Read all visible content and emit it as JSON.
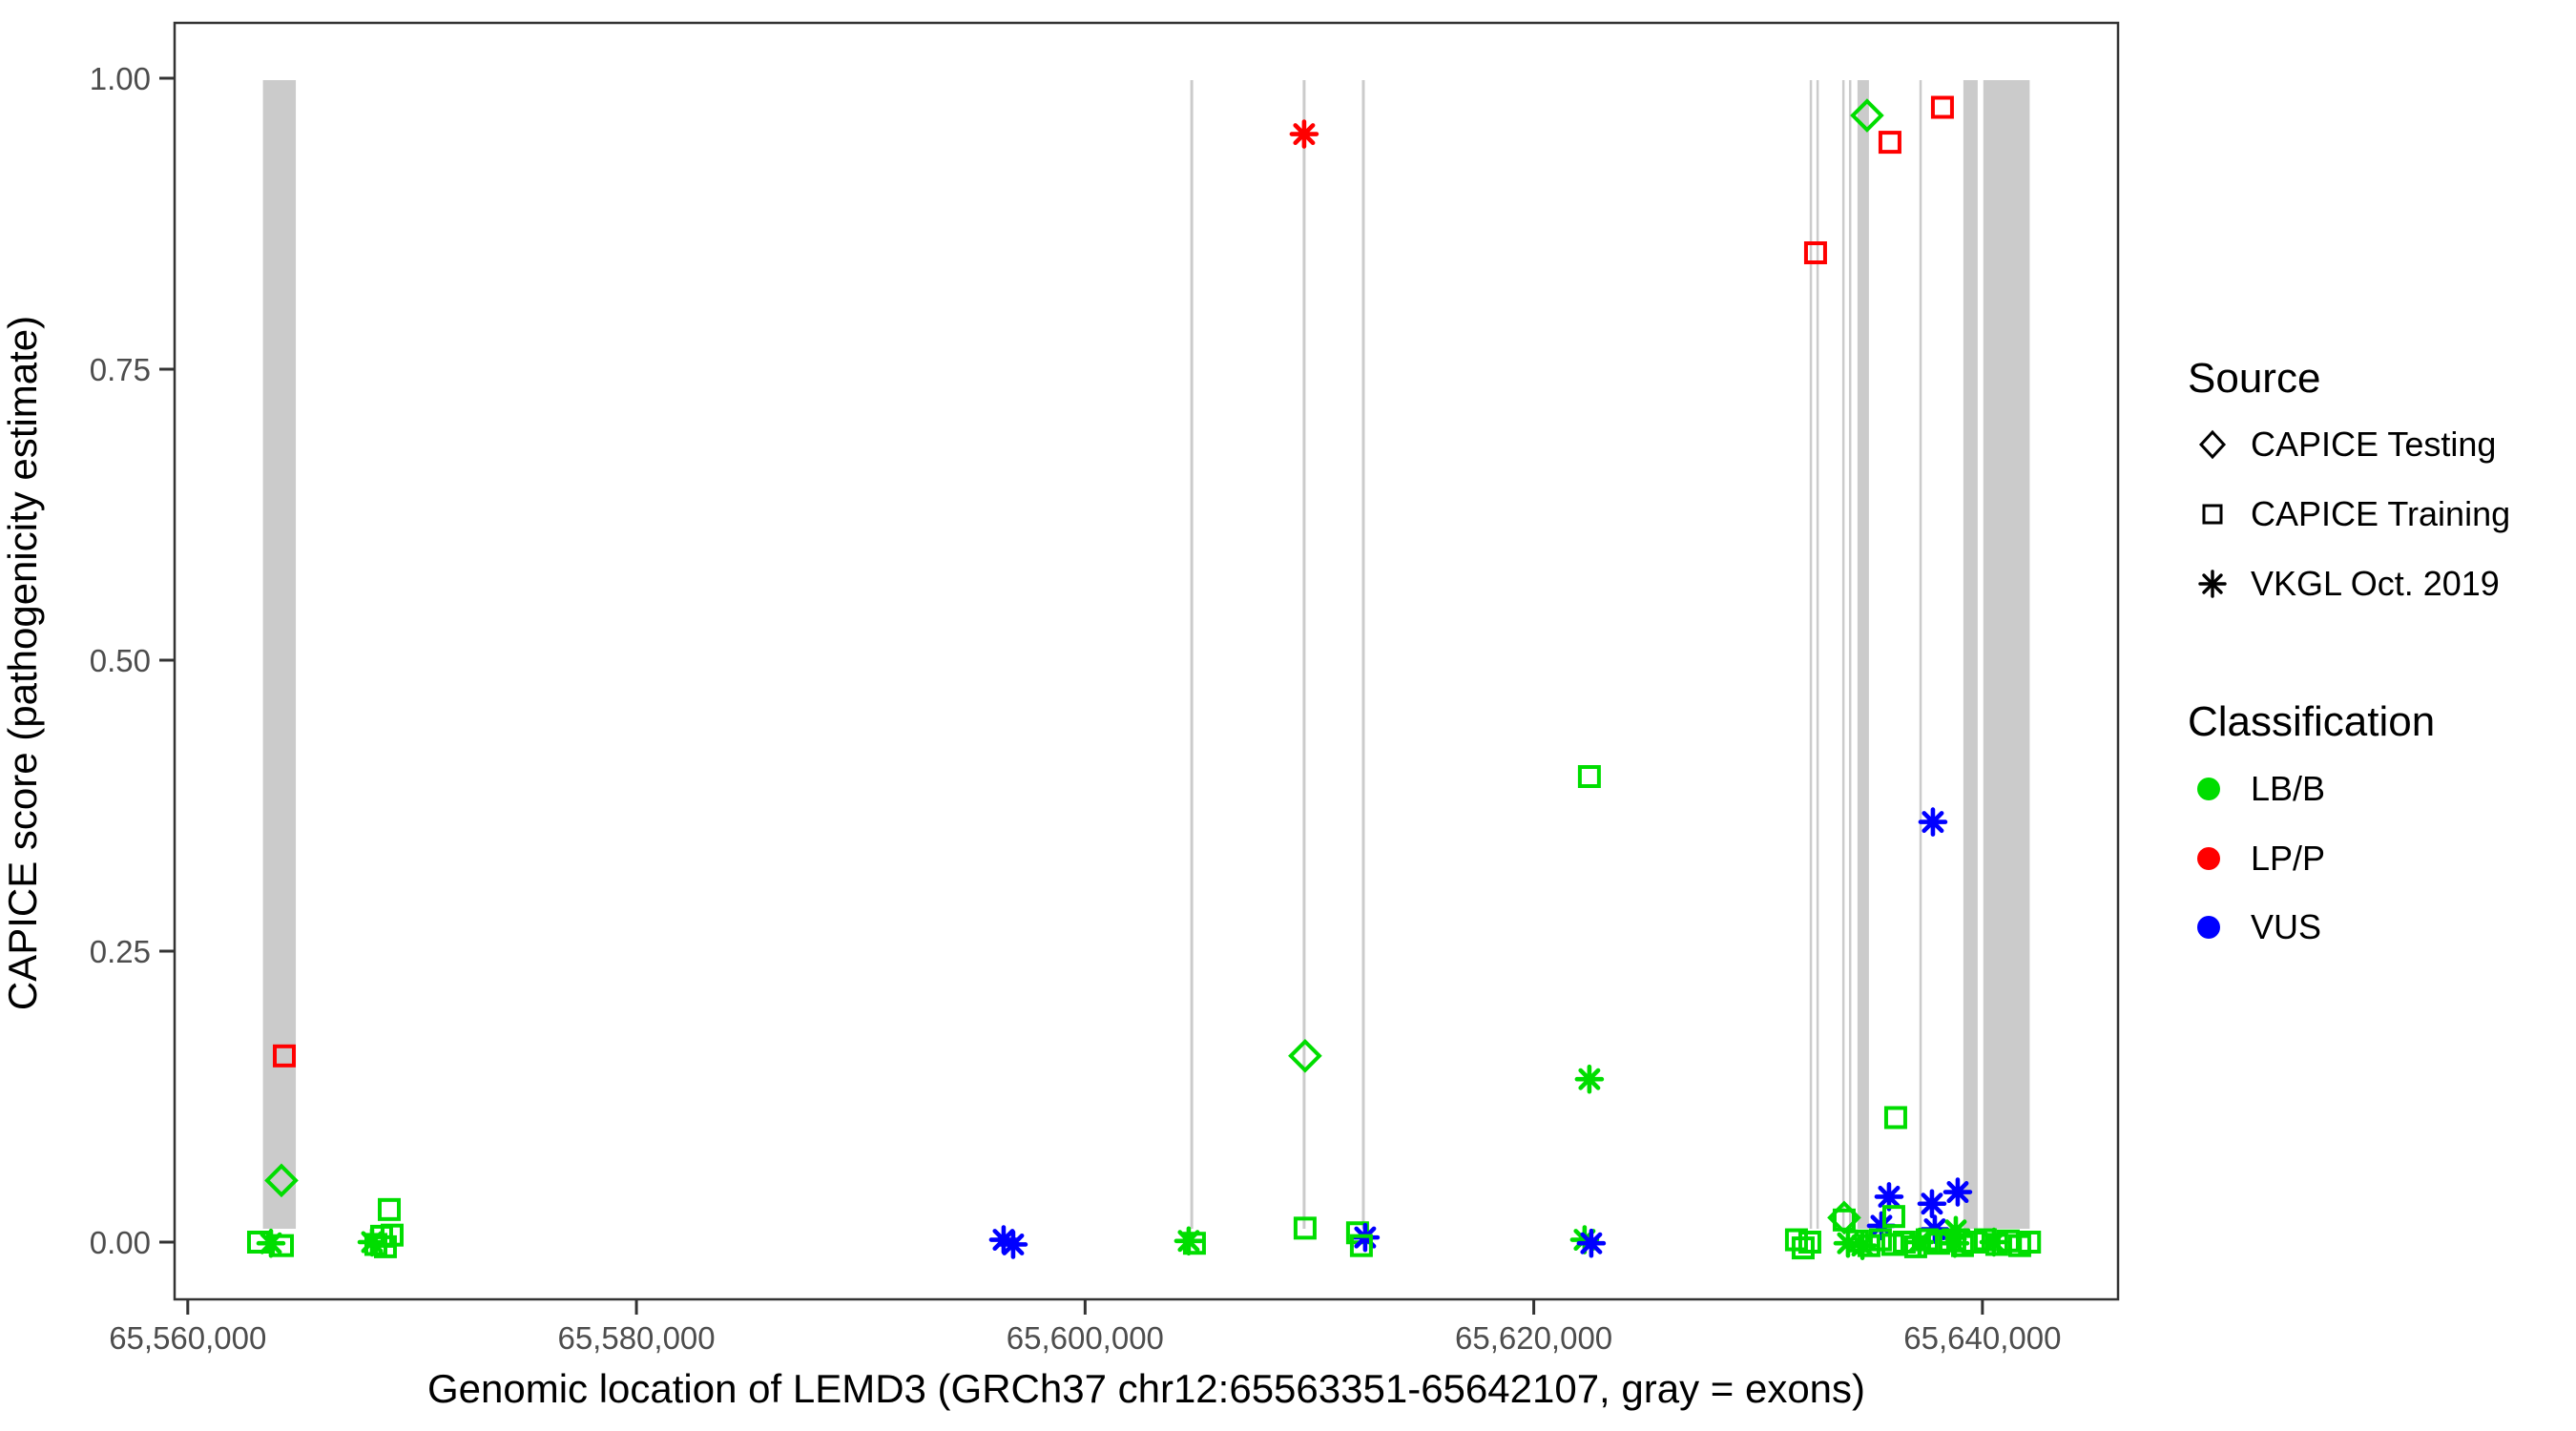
{
  "chart_data": {
    "type": "scatter",
    "xlabel": "Genomic location of LEMD3 (GRCh37 chr12:65563351-65642107, gray = exons)",
    "ylabel": "CAPICE score (pathogenicity estimate)",
    "xlim": [
      65559413,
      65646045
    ],
    "ylim": [
      0,
      1
    ],
    "grid": false,
    "x_ticks": [
      {
        "value": 65560000,
        "label": "65,560,000"
      },
      {
        "value": 65580000,
        "label": "65,580,000"
      },
      {
        "value": 65600000,
        "label": "65,600,000"
      },
      {
        "value": 65620000,
        "label": "65,620,000"
      },
      {
        "value": 65640000,
        "label": "65,640,000"
      }
    ],
    "y_ticks": [
      {
        "value": 0.0,
        "label": "0.00"
      },
      {
        "value": 0.25,
        "label": "0.25"
      },
      {
        "value": 0.5,
        "label": "0.50"
      },
      {
        "value": 0.75,
        "label": "0.75"
      },
      {
        "value": 1.0,
        "label": "1.00"
      }
    ],
    "exon_color": "#CBCBCB",
    "exons_bp": [
      [
        65563351,
        65564817
      ],
      [
        65604690,
        65604817
      ],
      [
        65609700,
        65609827
      ],
      [
        65612340,
        65612467
      ],
      [
        65632300,
        65632400
      ],
      [
        65632600,
        65632700
      ],
      [
        65633750,
        65633850
      ],
      [
        65634050,
        65634150
      ],
      [
        65634430,
        65634940
      ],
      [
        65637190,
        65637290
      ],
      [
        65639150,
        65639788
      ],
      [
        65640040,
        65642107
      ]
    ],
    "class_colors": {
      "LB/B": "#00DD00",
      "LP/P": "#FF0000",
      "VUS": "#0000FF"
    },
    "source_shapes": {
      "testing": "diamond",
      "training": "square",
      "vkgl": "asterisk"
    },
    "points": [
      {
        "x": 65564304,
        "y": 0.16,
        "src": "training",
        "cls": "LP/P"
      },
      {
        "x": 65564176,
        "y": 0.053,
        "src": "testing",
        "cls": "LB/B"
      },
      {
        "x": 65563155,
        "y": 0.0,
        "src": "training",
        "cls": "LB/B"
      },
      {
        "x": 65563708,
        "y": -0.001,
        "src": "vkgl",
        "cls": "LB/B"
      },
      {
        "x": 65564219,
        "y": -0.003,
        "src": "training",
        "cls": "LB/B"
      },
      {
        "x": 65568982,
        "y": 0.028,
        "src": "training",
        "cls": "LB/B"
      },
      {
        "x": 65568216,
        "y": 0.0,
        "src": "vkgl",
        "cls": "LB/B"
      },
      {
        "x": 65568641,
        "y": 0.005,
        "src": "training",
        "cls": "LB/B"
      },
      {
        "x": 65569109,
        "y": 0.006,
        "src": "training",
        "cls": "LB/B"
      },
      {
        "x": 65568811,
        "y": -0.004,
        "src": "training",
        "cls": "LB/B"
      },
      {
        "x": 65568386,
        "y": -0.002,
        "src": "training",
        "cls": "LB/B"
      },
      {
        "x": 65596368,
        "y": 0.002,
        "src": "vkgl",
        "cls": "VUS"
      },
      {
        "x": 65596793,
        "y": -0.002,
        "src": "vkgl",
        "cls": "VUS"
      },
      {
        "x": 65604618,
        "y": 0.001,
        "src": "vkgl",
        "cls": "LB/B"
      },
      {
        "x": 65604874,
        "y": -0.001,
        "src": "training",
        "cls": "LB/B"
      },
      {
        "x": 65609764,
        "y": 0.952,
        "src": "vkgl",
        "cls": "LP/P"
      },
      {
        "x": 65609806,
        "y": 0.16,
        "src": "testing",
        "cls": "LB/B"
      },
      {
        "x": 65609806,
        "y": 0.012,
        "src": "training",
        "cls": "LB/B"
      },
      {
        "x": 65612145,
        "y": 0.008,
        "src": "training",
        "cls": "LB/B"
      },
      {
        "x": 65612485,
        "y": 0.004,
        "src": "vkgl",
        "cls": "VUS"
      },
      {
        "x": 65612315,
        "y": -0.003,
        "src": "training",
        "cls": "LB/B"
      },
      {
        "x": 65622479,
        "y": 0.4,
        "src": "training",
        "cls": "LB/B"
      },
      {
        "x": 65622479,
        "y": 0.14,
        "src": "vkgl",
        "cls": "LB/B"
      },
      {
        "x": 65622266,
        "y": 0.002,
        "src": "vkgl",
        "cls": "LB/B"
      },
      {
        "x": 65622564,
        "y": -0.001,
        "src": "vkgl",
        "cls": "VUS"
      },
      {
        "x": 65632561,
        "y": 0.85,
        "src": "training",
        "cls": "LP/P"
      },
      {
        "x": 65634857,
        "y": 0.968,
        "src": "testing",
        "cls": "LB/B"
      },
      {
        "x": 65635878,
        "y": 0.945,
        "src": "training",
        "cls": "LP/P"
      },
      {
        "x": 65638217,
        "y": 0.975,
        "src": "training",
        "cls": "LP/P"
      },
      {
        "x": 65631710,
        "y": 0.002,
        "src": "training",
        "cls": "LB/B"
      },
      {
        "x": 65632306,
        "y": 0.0,
        "src": "training",
        "cls": "LB/B"
      },
      {
        "x": 65632008,
        "y": -0.005,
        "src": "training",
        "cls": "LB/B"
      },
      {
        "x": 65633837,
        "y": 0.021,
        "src": "testing",
        "cls": "LB/B"
      },
      {
        "x": 65633837,
        "y": 0.019,
        "src": "training",
        "cls": "LB/B"
      },
      {
        "x": 65634007,
        "y": -0.001,
        "src": "vkgl",
        "cls": "LB/B"
      },
      {
        "x": 65634650,
        "y": -0.003,
        "src": "vkgl",
        "cls": "LB/B"
      },
      {
        "x": 65635836,
        "y": 0.039,
        "src": "vkgl",
        "cls": "VUS"
      },
      {
        "x": 65635496,
        "y": 0.014,
        "src": "vkgl",
        "cls": "VUS"
      },
      {
        "x": 65636049,
        "y": 0.022,
        "src": "training",
        "cls": "LB/B"
      },
      {
        "x": 65636134,
        "y": 0.107,
        "src": "training",
        "cls": "LB/B"
      },
      {
        "x": 65637792,
        "y": 0.361,
        "src": "vkgl",
        "cls": "VUS"
      },
      {
        "x": 65637750,
        "y": 0.033,
        "src": "vkgl",
        "cls": "VUS"
      },
      {
        "x": 65638898,
        "y": 0.043,
        "src": "vkgl",
        "cls": "VUS"
      },
      {
        "x": 65637877,
        "y": 0.011,
        "src": "vkgl",
        "cls": "VUS"
      },
      {
        "x": 65638813,
        "y": 0.01,
        "src": "vkgl",
        "cls": "LB/B"
      },
      {
        "x": 65634432,
        "y": 0.001,
        "src": "training",
        "cls": "LB/B"
      },
      {
        "x": 65634942,
        "y": -0.003,
        "src": "training",
        "cls": "LB/B"
      },
      {
        "x": 65635453,
        "y": 0.002,
        "src": "training",
        "cls": "LB/B"
      },
      {
        "x": 65636006,
        "y": -0.002,
        "src": "training",
        "cls": "LB/B"
      },
      {
        "x": 65636516,
        "y": 0.0,
        "src": "training",
        "cls": "LB/B"
      },
      {
        "x": 65637026,
        "y": -0.004,
        "src": "training",
        "cls": "LB/B"
      },
      {
        "x": 65637537,
        "y": 0.002,
        "src": "training",
        "cls": "LB/B"
      },
      {
        "x": 65638047,
        "y": -0.001,
        "src": "training",
        "cls": "LB/B"
      },
      {
        "x": 65638557,
        "y": 0.001,
        "src": "training",
        "cls": "LB/B"
      },
      {
        "x": 65639110,
        "y": -0.003,
        "src": "training",
        "cls": "LB/B"
      },
      {
        "x": 65639620,
        "y": 0.0,
        "src": "training",
        "cls": "LB/B"
      },
      {
        "x": 65640131,
        "y": 0.002,
        "src": "training",
        "cls": "LB/B"
      },
      {
        "x": 65640641,
        "y": -0.002,
        "src": "training",
        "cls": "LB/B"
      },
      {
        "x": 65641151,
        "y": 0.001,
        "src": "training",
        "cls": "LB/B"
      },
      {
        "x": 65641662,
        "y": -0.003,
        "src": "training",
        "cls": "LB/B"
      },
      {
        "x": 65642100,
        "y": 0.0,
        "src": "training",
        "cls": "LB/B"
      },
      {
        "x": 65637196,
        "y": 0.0,
        "src": "vkgl",
        "cls": "LB/B"
      },
      {
        "x": 65638770,
        "y": -0.001,
        "src": "vkgl",
        "cls": "LB/B"
      },
      {
        "x": 65640513,
        "y": 0.0,
        "src": "vkgl",
        "cls": "LB/B"
      }
    ],
    "legend": {
      "source": {
        "title": "Source",
        "items": [
          {
            "label": "CAPICE Testing",
            "shape": "diamond"
          },
          {
            "label": "CAPICE Training",
            "shape": "square"
          },
          {
            "label": "VKGL Oct. 2019",
            "shape": "asterisk"
          }
        ]
      },
      "classification": {
        "title": "Classification",
        "items": [
          {
            "label": "LB/B",
            "color": "#00DD00"
          },
          {
            "label": "LP/P",
            "color": "#FF0000"
          },
          {
            "label": "VUS",
            "color": "#0000FF"
          }
        ]
      }
    }
  }
}
